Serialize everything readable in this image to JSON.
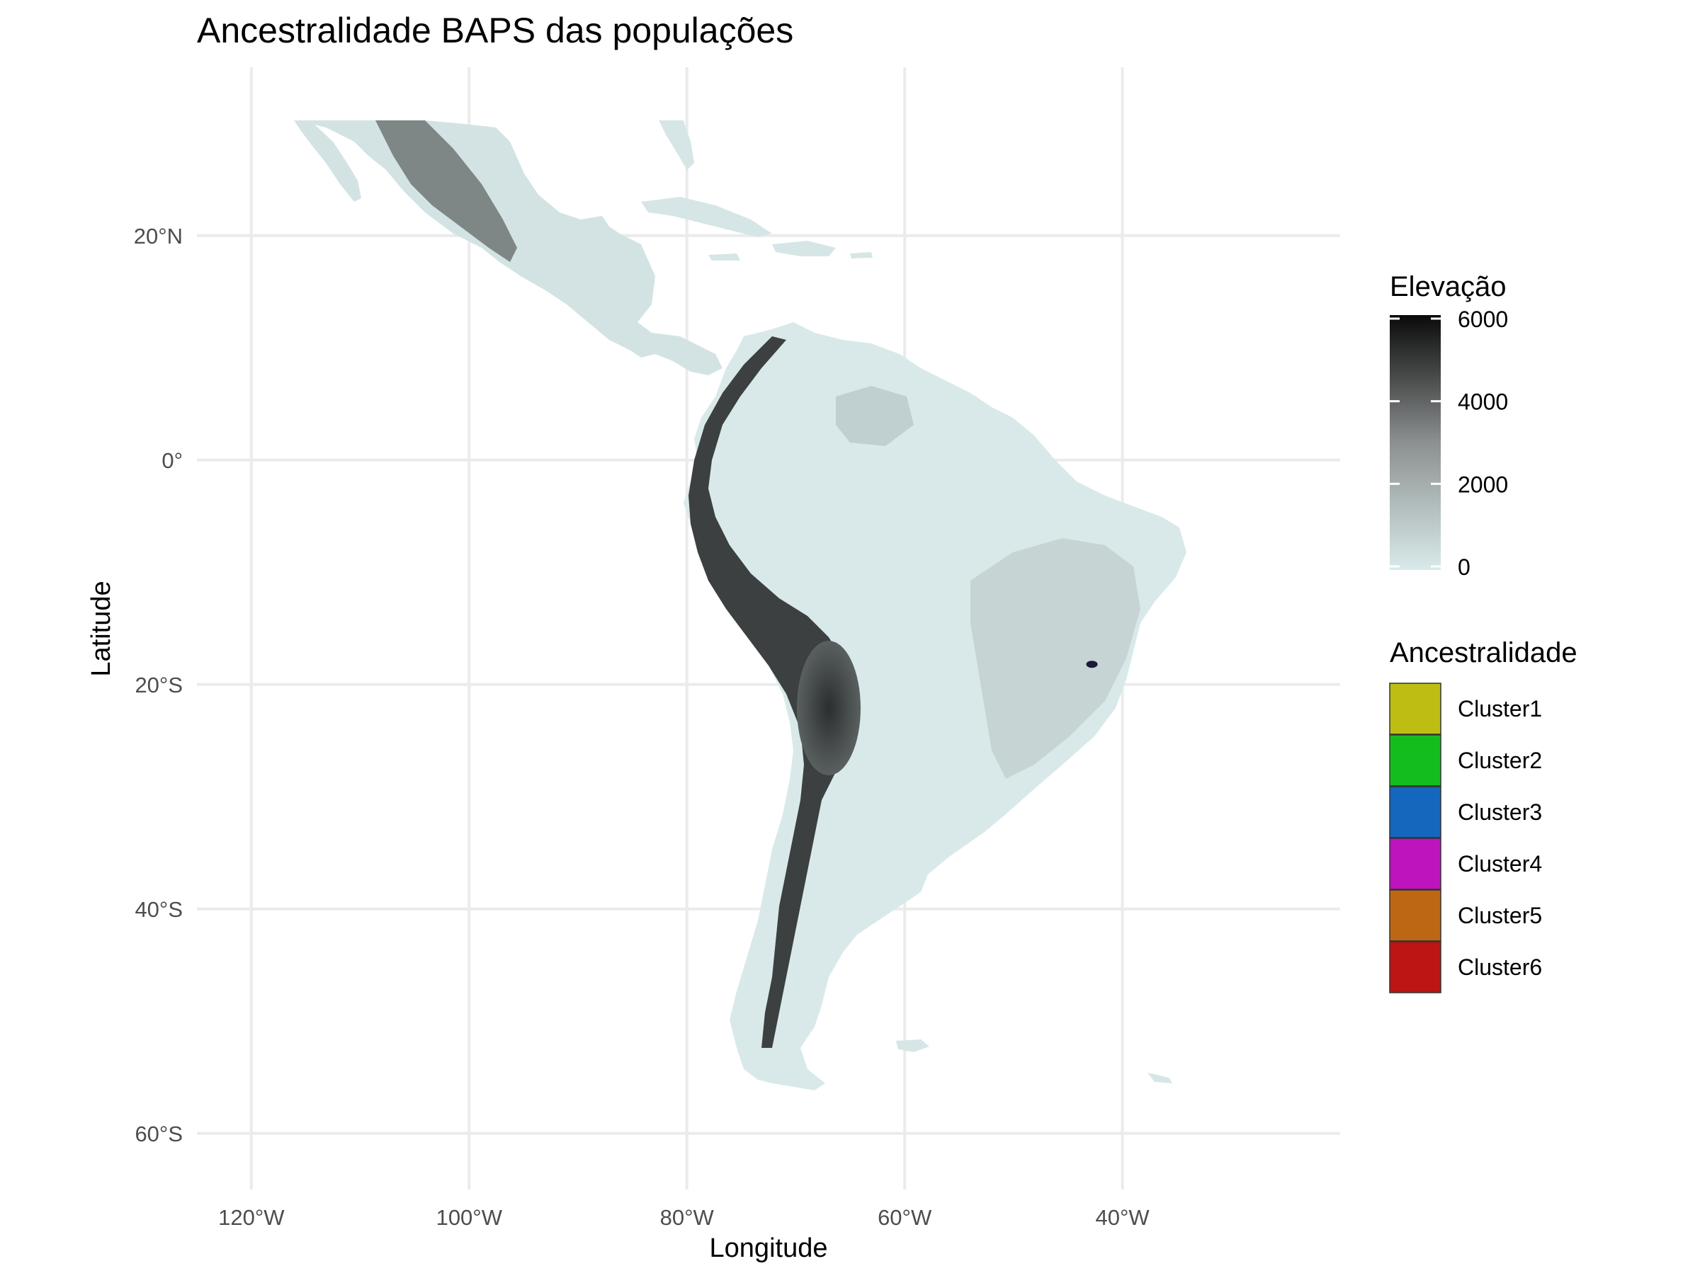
{
  "title": "Ancestralidade BAPS das populações",
  "x_axis": {
    "label": "Longitude",
    "ticks": [
      {
        "value": -120,
        "label": "120°W"
      },
      {
        "value": -100,
        "label": "100°W"
      },
      {
        "value": -80,
        "label": "80°W"
      },
      {
        "value": -60,
        "label": "60°W"
      },
      {
        "value": -40,
        "label": "40°W"
      }
    ],
    "range": [
      -125,
      -20
    ]
  },
  "y_axis": {
    "label": "Latitude",
    "ticks": [
      {
        "value": 20,
        "label": "20°N"
      },
      {
        "value": 0,
        "label": "0°"
      },
      {
        "value": -20,
        "label": "20°S"
      },
      {
        "value": -40,
        "label": "40°S"
      },
      {
        "value": -60,
        "label": "60°S"
      }
    ],
    "range": [
      -65,
      35
    ]
  },
  "elevation_legend": {
    "title": "Elevação",
    "unit_range": [
      0,
      6000
    ],
    "ticks": [
      "6000",
      "4000",
      "2000",
      "0"
    ],
    "tick_values": [
      6000,
      4000,
      2000,
      0
    ],
    "colors": {
      "low": "#d9eaea",
      "mid": "#8c9090",
      "high": "#0a0a0a"
    }
  },
  "ancestry_legend": {
    "title": "Ancestralidade",
    "items": [
      {
        "label": "Cluster1",
        "color": "#bdbd14"
      },
      {
        "label": "Cluster2",
        "color": "#14bd1e"
      },
      {
        "label": "Cluster3",
        "color": "#1467bd"
      },
      {
        "label": "Cluster4",
        "color": "#bd14bd"
      },
      {
        "label": "Cluster5",
        "color": "#bd6714"
      },
      {
        "label": "Cluster6",
        "color": "#bd1414"
      }
    ]
  },
  "sample_point": {
    "lon": -42.8,
    "lat": -18.2,
    "color": "#1a1a3a"
  },
  "land_color": "#d8e8e8",
  "mountain_color": "#3a3d3d"
}
